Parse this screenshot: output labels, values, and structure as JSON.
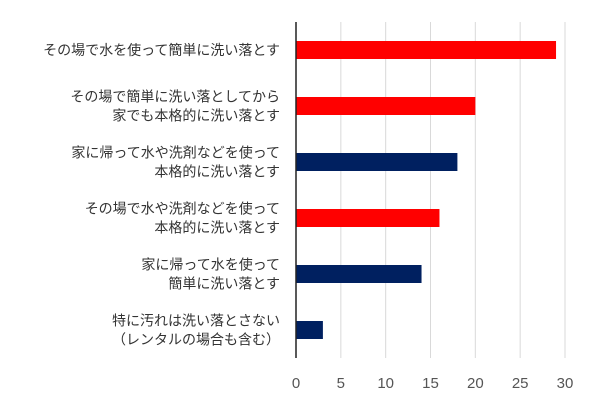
{
  "chart_data": {
    "type": "bar",
    "orientation": "horizontal",
    "categories": [
      [
        "その場で水を使って簡単に洗い落とす"
      ],
      [
        "その場で簡単に洗い落としてから",
        "家でも本格的に洗い落とす"
      ],
      [
        "家に帰って水や洗剤などを使って",
        "本格的に洗い落とす"
      ],
      [
        "その場で水や洗剤などを使って",
        "本格的に洗い落とす"
      ],
      [
        "家に帰って水を使って",
        "簡単に洗い落とす"
      ],
      [
        "特に汚れは洗い落とさない",
        "（レンタルの場合も含む）"
      ]
    ],
    "values": [
      29,
      20,
      18,
      16,
      14,
      3
    ],
    "bar_colors": [
      "#ff0000",
      "#ff0000",
      "#002060",
      "#ff0000",
      "#002060",
      "#002060"
    ],
    "xlim": [
      0,
      30
    ],
    "xticks": [
      0,
      5,
      10,
      15,
      20,
      25,
      30
    ],
    "grid": true,
    "title": "",
    "xlabel": "",
    "ylabel": ""
  }
}
